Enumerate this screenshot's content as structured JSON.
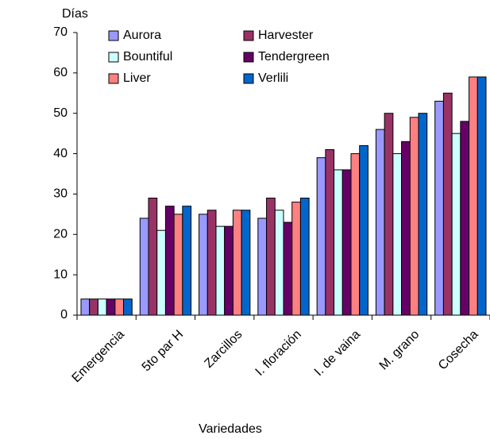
{
  "chart_data": {
    "type": "bar",
    "y_label": "Días",
    "x_label": "Variedades",
    "categories": [
      "Emergencia",
      "5to par  H",
      "Zarcillos",
      "I. floración",
      "I. de vaina",
      "M. grano",
      "Cosecha"
    ],
    "series": [
      {
        "name": "Aurora",
        "color": "#9999ff",
        "values": [
          4,
          24,
          25,
          24,
          39,
          46,
          53
        ]
      },
      {
        "name": "Harvester",
        "color": "#993366",
        "values": [
          4,
          29,
          26,
          29,
          41,
          50,
          55
        ]
      },
      {
        "name": "Bountiful",
        "color": "#ccffff",
        "values": [
          4,
          21,
          22,
          26,
          36,
          40,
          45
        ]
      },
      {
        "name": "Tendergreen",
        "color": "#660066",
        "values": [
          4,
          27,
          22,
          23,
          36,
          43,
          48
        ]
      },
      {
        "name": "Liver",
        "color": "#ff8080",
        "values": [
          4,
          25,
          26,
          28,
          40,
          49,
          59
        ]
      },
      {
        "name": "Verlili",
        "color": "#0066cc",
        "values": [
          4,
          27,
          26,
          29,
          42,
          50,
          59
        ]
      }
    ],
    "ylim": [
      0,
      70
    ],
    "yticks": [
      0,
      10,
      20,
      30,
      40,
      50,
      60,
      70
    ],
    "grid": false,
    "legend": "top-left"
  }
}
